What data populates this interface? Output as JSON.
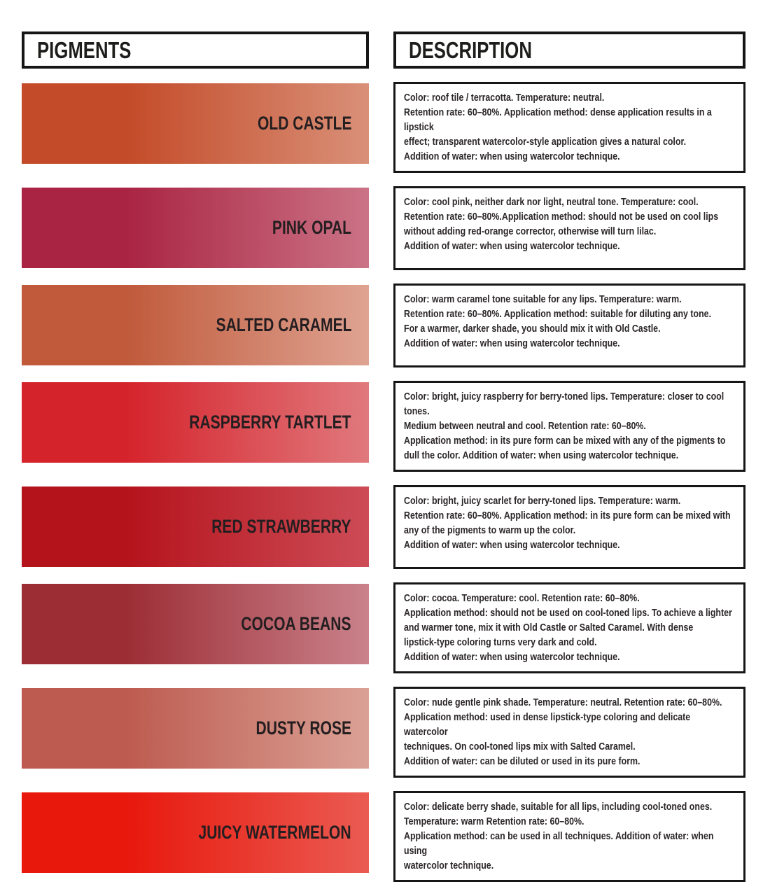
{
  "header": {
    "pigments_label": "PIGMENTS",
    "description_label": "DESCRIPTION"
  },
  "rows": [
    {
      "name": "OLD CASTLE",
      "gradient_start": "#c34b29",
      "gradient_end": "#d99078",
      "description": "Color: roof tile / terracotta. Temperature: neutral.\nRetention rate: 60–80%. Application method: dense application results in a lipstick\neffect; transparent watercolor-style application gives a natural color.\nAddition of water: when using watercolor technique."
    },
    {
      "name": "PINK OPAL",
      "gradient_start": "#a92442",
      "gradient_end": "#cb7386",
      "description": "Color: cool pink, neither dark nor light, neutral tone. Temperature: cool.\nRetention rate: 60–80%.Application method: should not be used on cool lips\nwithout adding red-orange corrector, otherwise will turn lilac.\nAddition of water: when using watercolor technique."
    },
    {
      "name": "SALTED CARAMEL",
      "gradient_start": "#c05a3b",
      "gradient_end": "#dfa392",
      "description": "Color: warm caramel tone suitable for any lips. Temperature: warm.\nRetention rate: 60–80%. Application method: suitable for diluting any tone.\nFor a warmer, darker shade, you should mix it with Old Castle.\nAddition of water: when using watercolor technique."
    },
    {
      "name": "RASPBERRY TARTLET",
      "gradient_start": "#d5232b",
      "gradient_end": "#e0797d",
      "description": "Color: bright, juicy raspberry for berry-toned lips. Temperature: closer to cool tones.\nMedium between neutral and cool. Retention rate: 60–80%.\nApplication method: in its pure form can be mixed with any of the pigments to\ndull the color. Addition of water: when using watercolor technique."
    },
    {
      "name": "RED STRAWBERRY",
      "gradient_start": "#b5131c",
      "gradient_end": "#cd4c56",
      "description": "Color: bright, juicy scarlet for berry-toned lips. Temperature: warm.\nRetention rate: 60–80%. Application method: in its pure form can be mixed with\nany of the pigments to warm up the color.\nAddition of water: when using watercolor technique."
    },
    {
      "name": "COCOA BEANS",
      "gradient_start": "#9c2d35",
      "gradient_end": "#ca828b",
      "description": "Color: cocoa. Temperature: cool. Retention rate: 60–80%.\nApplication method: should not be used on cool-toned lips. To achieve a lighter\nand warmer tone, mix it with Old Castle or Salted Caramel. With dense\nlipstick-type coloring turns very dark and cold.\nAddition of water: when using watercolor technique."
    },
    {
      "name": "DUSTY ROSE",
      "gradient_start": "#bd5b50",
      "gradient_end": "#dba195",
      "description": "Color: nude gentle pink shade. Temperature: neutral. Retention rate: 60–80%.\nApplication method: used in dense lipstick-type coloring and delicate watercolor\ntechniques. On cool-toned lips mix with Salted Caramel.\nAddition of water: can be diluted or used in its pure form."
    },
    {
      "name": "JUICY WATERMELON",
      "gradient_start": "#e8180d",
      "gradient_end": "#ea5b52",
      "description": "Color: delicate berry shade, suitable for all lips, including cool-toned ones.\nTemperature: warm Retention rate: 60–80%.\nApplication method: can be used in all techniques. Addition of water: when using\nwatercolor technique."
    }
  ]
}
